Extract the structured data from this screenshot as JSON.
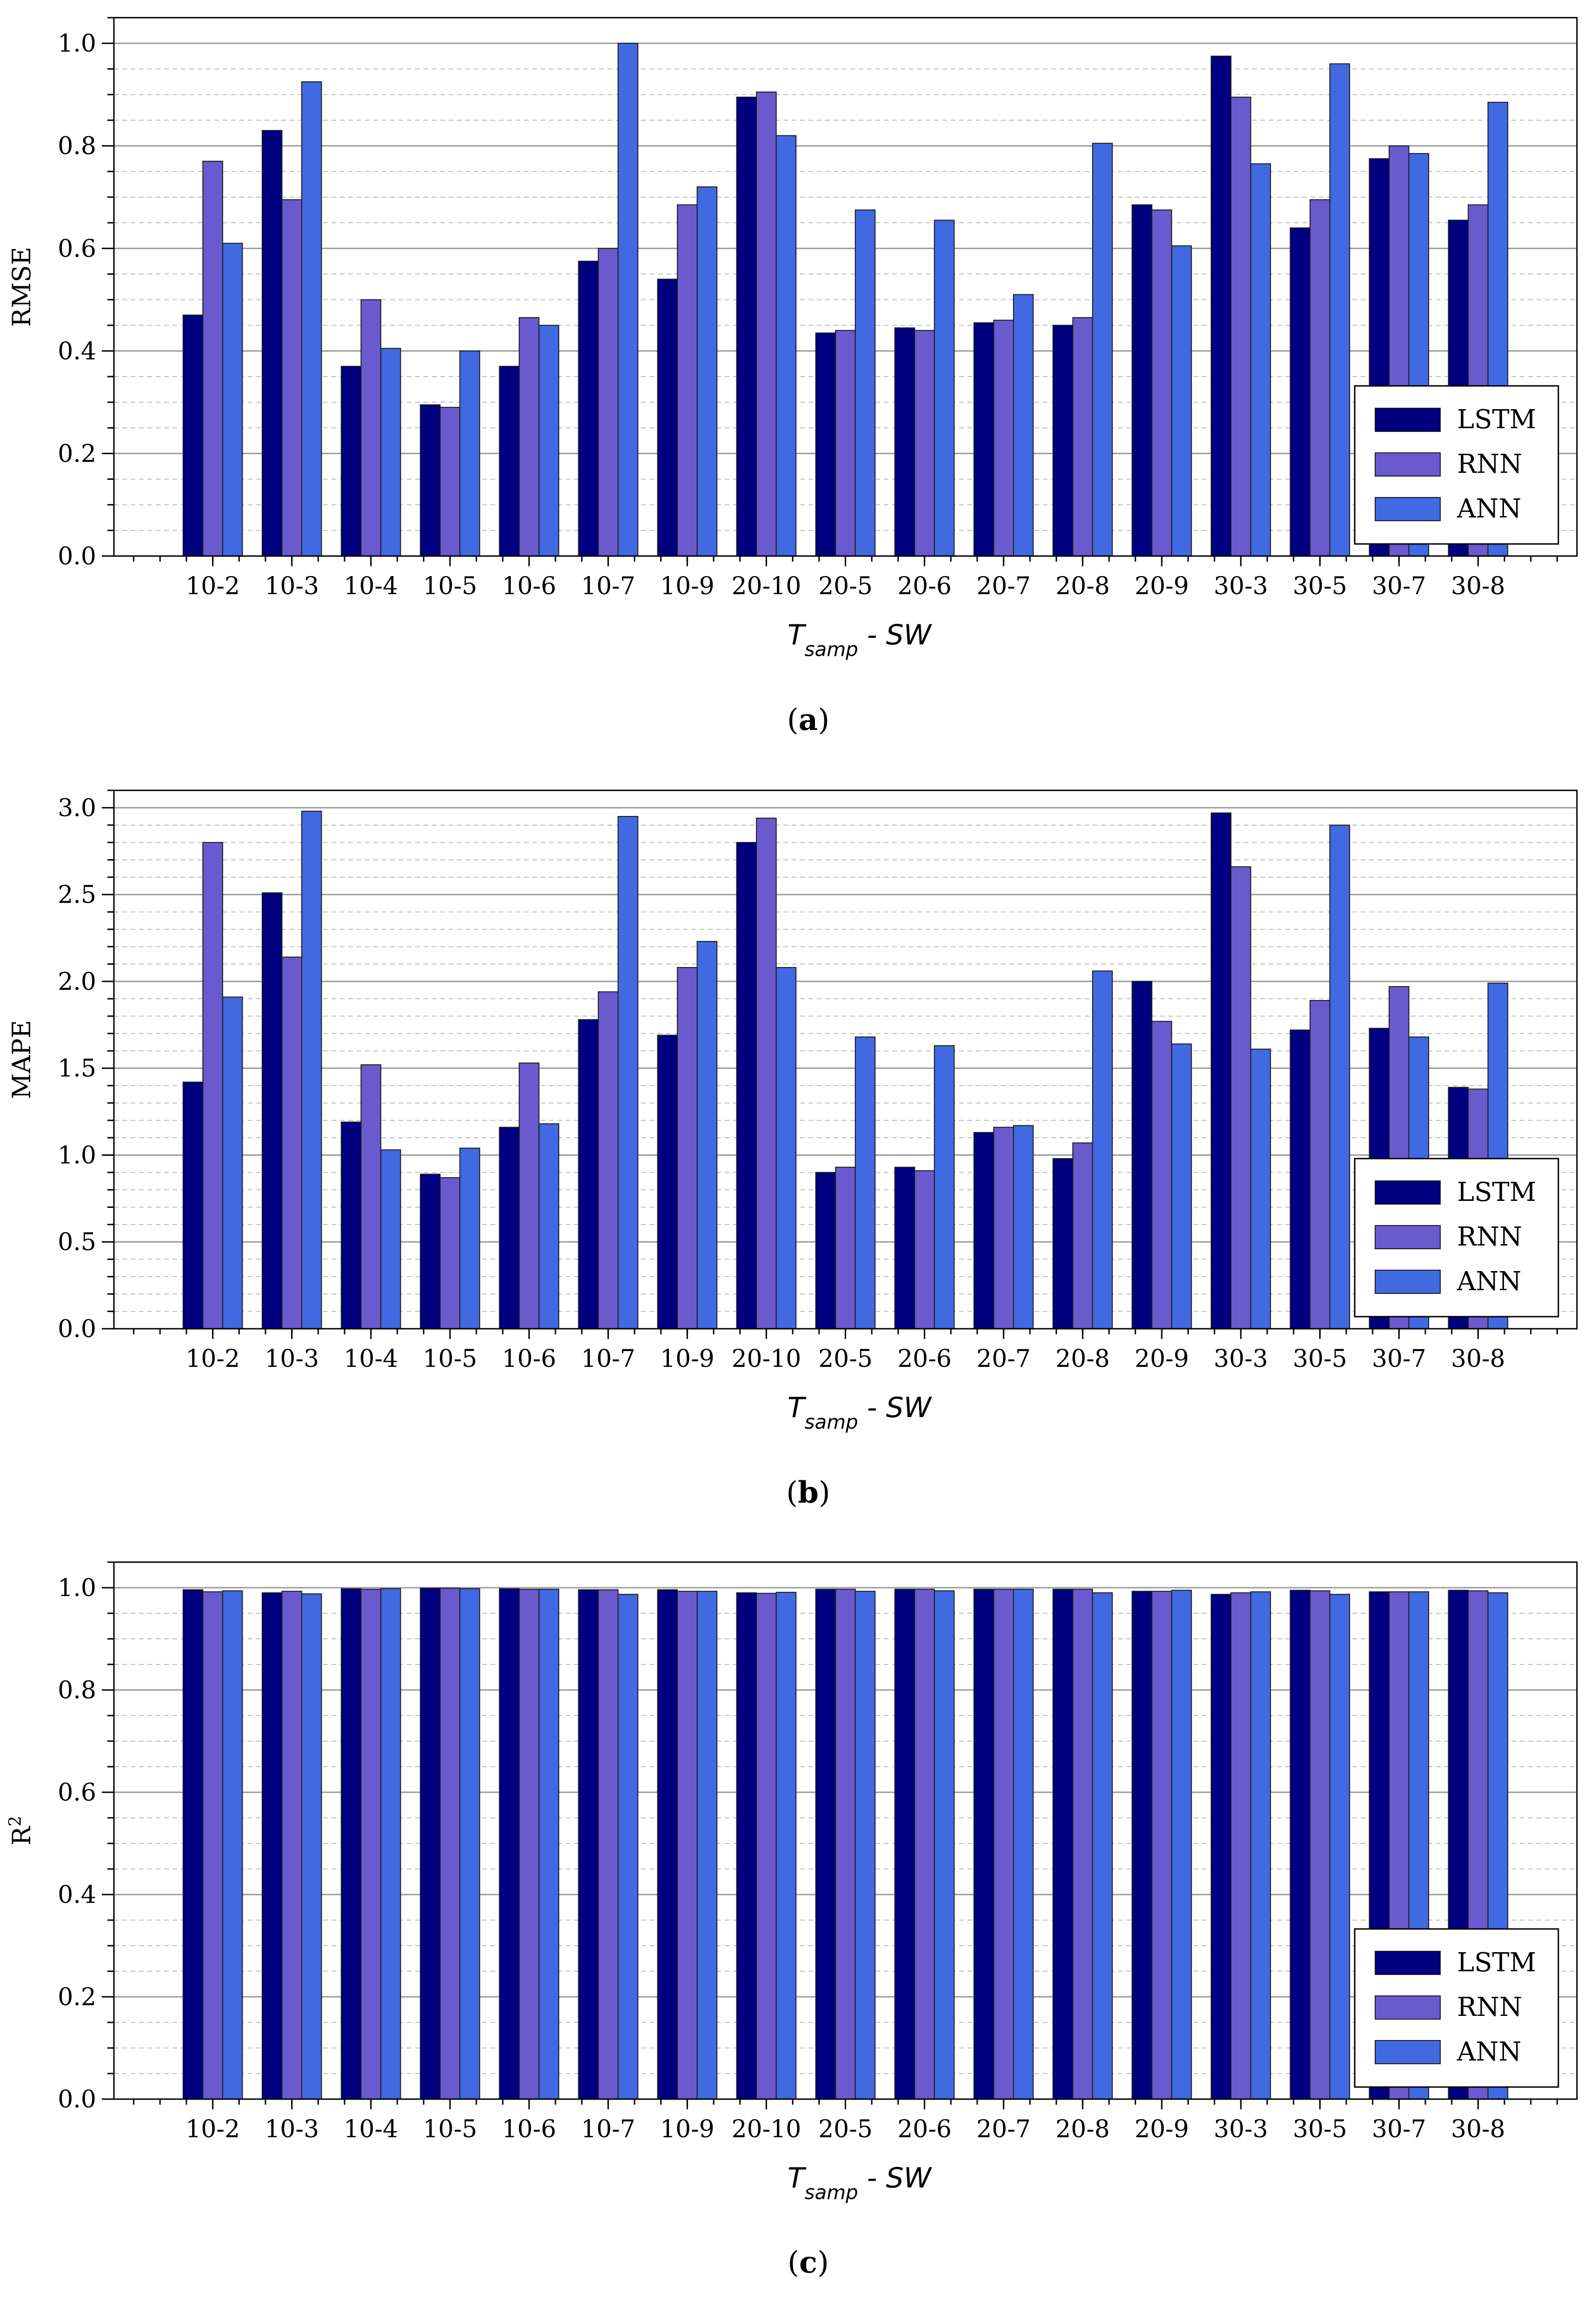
{
  "series_colors": {
    "LSTM": "#000080",
    "RNN": "#6a5acd",
    "ANN": "#4169e1"
  },
  "chart_data": [
    {
      "type": "bar",
      "caption_prefix": "(",
      "caption_letter": "a",
      "caption_suffix": ")",
      "ylabel": "RMSE",
      "ylabel_sup": "",
      "xlabel_main": "T",
      "xlabel_sub": "samp",
      "xlabel_rest": " - SW",
      "ylim": [
        0,
        1.05
      ],
      "yticks": [
        0.0,
        0.2,
        0.4,
        0.6,
        0.8,
        1.0
      ],
      "ytick_labels": [
        "0.0",
        "0.2",
        "0.4",
        "0.6",
        "0.8",
        "1.0"
      ],
      "minor_step": 0.05,
      "legend_position": "bottom-right",
      "categories": [
        "10-2",
        "10-3",
        "10-4",
        "10-5",
        "10-6",
        "10-7",
        "10-9",
        "20-10",
        "20-5",
        "20-6",
        "20-7",
        "20-8",
        "20-9",
        "30-3",
        "30-5",
        "30-7",
        "30-8"
      ],
      "series": [
        {
          "name": "LSTM",
          "values": [
            0.47,
            0.83,
            0.37,
            0.295,
            0.37,
            0.575,
            0.54,
            0.895,
            0.435,
            0.445,
            0.455,
            0.45,
            0.685,
            0.975,
            0.64,
            0.775,
            0.655
          ]
        },
        {
          "name": "RNN",
          "values": [
            0.77,
            0.695,
            0.5,
            0.29,
            0.465,
            0.6,
            0.685,
            0.905,
            0.44,
            0.44,
            0.46,
            0.465,
            0.675,
            0.895,
            0.695,
            0.8,
            0.685
          ]
        },
        {
          "name": "ANN",
          "values": [
            0.61,
            0.925,
            0.405,
            0.4,
            0.45,
            1.0,
            0.72,
            0.82,
            0.675,
            0.655,
            0.51,
            0.805,
            0.605,
            0.765,
            0.96,
            0.785,
            0.885
          ]
        }
      ]
    },
    {
      "type": "bar",
      "caption_prefix": "(",
      "caption_letter": "b",
      "caption_suffix": ")",
      "ylabel": "MAPE",
      "ylabel_sup": "",
      "xlabel_main": "T",
      "xlabel_sub": "samp",
      "xlabel_rest": " - SW",
      "ylim": [
        0,
        3.1
      ],
      "yticks": [
        0.0,
        0.5,
        1.0,
        1.5,
        2.0,
        2.5,
        3.0
      ],
      "ytick_labels": [
        "0.0",
        "0.5",
        "1.0",
        "1.5",
        "2.0",
        "2.5",
        "3.0"
      ],
      "minor_step": 0.1,
      "legend_position": "bottom-right",
      "categories": [
        "10-2",
        "10-3",
        "10-4",
        "10-5",
        "10-6",
        "10-7",
        "10-9",
        "20-10",
        "20-5",
        "20-6",
        "20-7",
        "20-8",
        "20-9",
        "30-3",
        "30-5",
        "30-7",
        "30-8"
      ],
      "series": [
        {
          "name": "LSTM",
          "values": [
            1.42,
            2.51,
            1.19,
            0.89,
            1.16,
            1.78,
            1.69,
            2.8,
            0.9,
            0.93,
            1.13,
            0.98,
            2.0,
            2.97,
            1.72,
            1.73,
            1.39
          ]
        },
        {
          "name": "RNN",
          "values": [
            2.8,
            2.14,
            1.52,
            0.87,
            1.53,
            1.94,
            2.08,
            2.94,
            0.93,
            0.91,
            1.16,
            1.07,
            1.77,
            2.66,
            1.89,
            1.97,
            1.38
          ]
        },
        {
          "name": "ANN",
          "values": [
            1.91,
            2.98,
            1.03,
            1.04,
            1.18,
            2.95,
            2.23,
            2.08,
            1.68,
            1.63,
            1.17,
            2.06,
            1.64,
            1.61,
            2.9,
            1.68,
            1.99
          ]
        }
      ]
    },
    {
      "type": "bar",
      "caption_prefix": "(",
      "caption_letter": "c",
      "caption_suffix": ")",
      "ylabel": "R",
      "ylabel_sup": "2",
      "xlabel_main": "T",
      "xlabel_sub": "samp",
      "xlabel_rest": " - SW",
      "ylim": [
        0,
        1.05
      ],
      "yticks": [
        0.0,
        0.2,
        0.4,
        0.6,
        0.8,
        1.0
      ],
      "ytick_labels": [
        "0.0",
        "0.2",
        "0.4",
        "0.6",
        "0.8",
        "1.0"
      ],
      "minor_step": 0.05,
      "legend_position": "bottom-right",
      "categories": [
        "10-2",
        "10-3",
        "10-4",
        "10-5",
        "10-6",
        "10-7",
        "10-9",
        "20-10",
        "20-5",
        "20-6",
        "20-7",
        "20-8",
        "20-9",
        "30-3",
        "30-5",
        "30-7",
        "30-8"
      ],
      "series": [
        {
          "name": "LSTM",
          "values": [
            0.996,
            0.99,
            0.998,
            0.999,
            0.998,
            0.996,
            0.996,
            0.99,
            0.997,
            0.997,
            0.997,
            0.997,
            0.993,
            0.987,
            0.995,
            0.992,
            0.995
          ]
        },
        {
          "name": "RNN",
          "values": [
            0.992,
            0.993,
            0.997,
            0.999,
            0.997,
            0.996,
            0.993,
            0.989,
            0.997,
            0.997,
            0.997,
            0.997,
            0.993,
            0.99,
            0.994,
            0.992,
            0.994
          ]
        },
        {
          "name": "ANN",
          "values": [
            0.994,
            0.988,
            0.998,
            0.998,
            0.997,
            0.987,
            0.993,
            0.991,
            0.993,
            0.994,
            0.997,
            0.99,
            0.995,
            0.992,
            0.987,
            0.992,
            0.99
          ]
        }
      ]
    }
  ]
}
